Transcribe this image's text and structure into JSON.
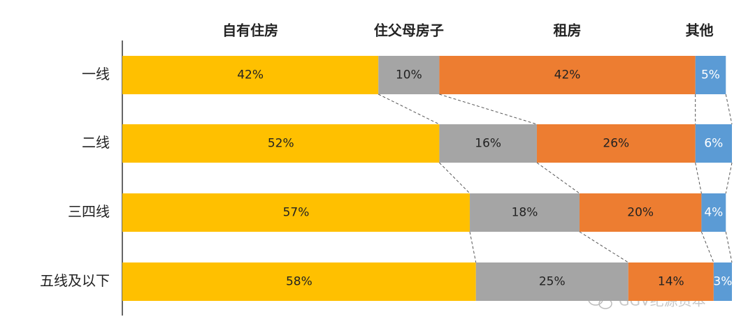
{
  "chart_data": {
    "type": "stacked-bar-horizontal",
    "categories": [
      "一线",
      "二线",
      "三四线",
      "五线及以下"
    ],
    "series": [
      {
        "name": "自有住房",
        "color": "#FFC000",
        "values": [
          42,
          52,
          57,
          58
        ],
        "value_labels": [
          "42%",
          "52%",
          "57%",
          "58%"
        ]
      },
      {
        "name": "住父母房子",
        "color": "#A5A5A5",
        "values": [
          10,
          16,
          18,
          25
        ],
        "value_labels": [
          "10%",
          "16%",
          "18%",
          "25%"
        ]
      },
      {
        "name": "租房",
        "color": "#ED7D31",
        "values": [
          42,
          26,
          20,
          14
        ],
        "value_labels": [
          "42%",
          "26%",
          "20%",
          "14%"
        ]
      },
      {
        "name": "其他",
        "color": "#5B9BD5",
        "values": [
          5,
          6,
          4,
          3
        ],
        "value_labels": [
          "5%",
          "6%",
          "4%",
          "3%"
        ]
      }
    ],
    "xlim": [
      0,
      100
    ],
    "watermark": "GGV纪源资本"
  }
}
